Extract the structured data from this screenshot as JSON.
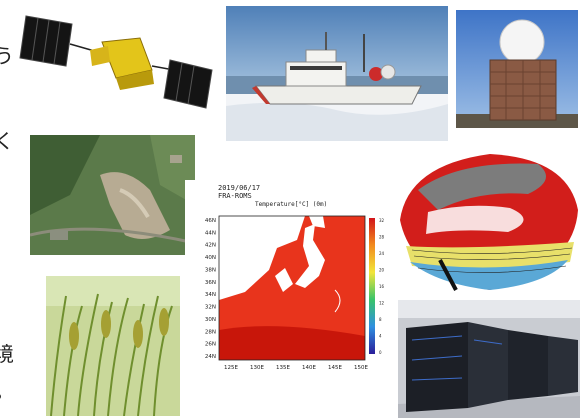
{
  "edge_text": [
    "う",
    "く",
    "境",
    "。"
  ],
  "photos": [
    {
      "name": "satellite",
      "icon": "satellite-icon"
    },
    {
      "name": "research-vessel",
      "icon": "ship-icon"
    },
    {
      "name": "radar-dome-building",
      "icon": "radar-icon"
    },
    {
      "name": "landslide-aerial",
      "icon": "landslide-icon"
    },
    {
      "name": "global-ocean-model",
      "icon": "globe-icon"
    },
    {
      "name": "rice-paddy",
      "icon": "rice-icon"
    },
    {
      "name": "supercomputer",
      "icon": "server-icon"
    }
  ],
  "sst_map": {
    "date": "2019/06/17",
    "model": "FRA-ROMS",
    "variable": "Temperature[°C] (0m)",
    "lat_labels": [
      "46N",
      "44N",
      "42N",
      "40N",
      "38N",
      "36N",
      "34N",
      "32N",
      "30N",
      "28N",
      "26N",
      "24N"
    ],
    "lon_labels": [
      "125E",
      "130E",
      "135E",
      "140E",
      "145E",
      "150E"
    ],
    "colorbar_ticks": [
      "32",
      "28",
      "24",
      "20",
      "16",
      "12",
      "8",
      "4",
      "0"
    ],
    "colors": {
      "warm": "#e8341c",
      "hot": "#c8160a",
      "land": "#ffffff"
    }
  },
  "chart_data": {
    "type": "heatmap",
    "title": "2019/06/17 FRA-ROMS Temperature[°C] (0m)",
    "xlabel": "",
    "ylabel": "",
    "x_ticks": [
      "125E",
      "130E",
      "135E",
      "140E",
      "145E",
      "150E"
    ],
    "y_ticks": [
      "24N",
      "26N",
      "28N",
      "30N",
      "32N",
      "34N",
      "36N",
      "38N",
      "40N",
      "42N",
      "44N",
      "46N"
    ],
    "colorbar": {
      "min": 0,
      "max": 32,
      "ticks": [
        0,
        4,
        8,
        12,
        16,
        20,
        24,
        28,
        32
      ]
    }
  }
}
